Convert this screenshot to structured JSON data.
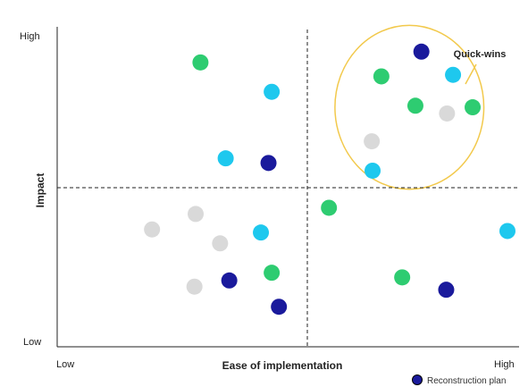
{
  "chart_data": {
    "type": "scatter",
    "xlabel": "Ease of implementation",
    "ylabel": "Impact",
    "x_ticks": {
      "low": "Low",
      "high": "High"
    },
    "y_ticks": {
      "low": "Low",
      "high": "High"
    },
    "xlim": [
      0,
      100
    ],
    "ylim": [
      0,
      100
    ],
    "dividers": {
      "x": 50,
      "y": 50
    },
    "grid": false,
    "legend_position": "bottom-right",
    "annotation": {
      "label": "Quick-wins",
      "center": [
        75.5,
        76
      ],
      "radius_x": 18.6,
      "radius_y": 26.5,
      "color": "#f2c94c"
    },
    "series": [
      {
        "name": "Reconstruction plan",
        "color": "#1a1a9c",
        "points": [
          [
            78.5,
            94
          ],
          [
            40.3,
            58
          ],
          [
            30.5,
            20
          ],
          [
            42.9,
            11.5
          ],
          [
            84.7,
            17
          ]
        ]
      },
      {
        "color": "#2ecc71",
        "points": [
          [
            23.3,
            90.5
          ],
          [
            68.5,
            86
          ],
          [
            77,
            76.5
          ],
          [
            91.3,
            76
          ],
          [
            55.4,
            43.5
          ],
          [
            41.1,
            22.5
          ],
          [
            73.7,
            21
          ]
        ]
      },
      {
        "color": "#1ec8ee",
        "points": [
          [
            41.1,
            81
          ],
          [
            86.4,
            86.5
          ],
          [
            29.6,
            59.5
          ],
          [
            66.3,
            55.5
          ],
          [
            38.4,
            35.5
          ],
          [
            100,
            36
          ]
        ]
      },
      {
        "color": "#d9d9d9",
        "points": [
          [
            84.9,
            74
          ],
          [
            66.1,
            65
          ],
          [
            22.1,
            41.5
          ],
          [
            11.2,
            36.5
          ],
          [
            28.2,
            32
          ],
          [
            21.8,
            18
          ]
        ]
      }
    ]
  }
}
